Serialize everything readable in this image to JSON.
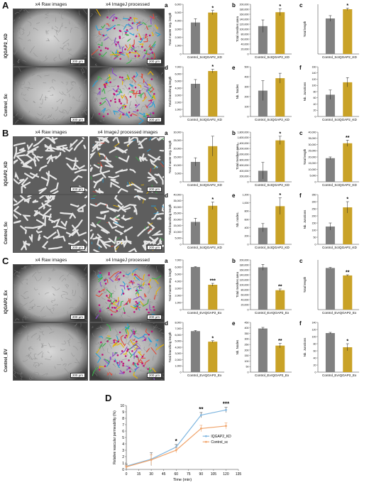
{
  "panels": [
    {
      "letter": "A",
      "image_titles": [
        "x4 Raw images",
        "x4 ImageJ processed"
      ],
      "row_labels": [
        "IQGAP2_KD",
        "Control_Sc"
      ],
      "scale_bar": "200 µm",
      "chart_data": [
        {
          "type": "bar",
          "letter": "a",
          "categories": [
            "Control_Sc",
            "IQGAP2_KD"
          ],
          "values": [
            3800,
            5000
          ],
          "errors": [
            450,
            250
          ],
          "ylabel": "Total master seg. length",
          "ylim": [
            0,
            6000
          ],
          "yticks": [
            "0",
            "1,000",
            "2,000",
            "3,000",
            "4,000",
            "5,000",
            "6,000"
          ],
          "significance": [
            "",
            "*"
          ]
        },
        {
          "type": "bar",
          "letter": "b",
          "categories": [
            "Control_Sc",
            "IQGAP2_KD"
          ],
          "values": [
            112000,
            168000
          ],
          "errors": [
            25000,
            14000
          ],
          "ylabel": "Total meshes area",
          "ylim": [
            0,
            200000
          ],
          "yticks": [
            "0",
            "20,000",
            "40,000",
            "60,000",
            "80,000",
            "100,000",
            "120,000",
            "140,000",
            "160,000",
            "180,000",
            "200,000"
          ],
          "significance": [
            "",
            "*"
          ]
        },
        {
          "type": "bar",
          "letter": "c",
          "categories": [
            "Control_Sc",
            "IQGAP2_KD"
          ],
          "values": [
            5000,
            6300
          ],
          "errors": [
            400,
            150
          ],
          "ylabel": "Total length",
          "ylim": [
            0,
            7000
          ],
          "yticks": [],
          "significance": [
            "",
            "*"
          ]
        },
        {
          "type": "bar",
          "letter": "d",
          "categories": [
            "Control_Sc",
            "IQGAP2_KD"
          ],
          "values": [
            4600,
            6400
          ],
          "errors": [
            600,
            250
          ],
          "ylabel": "Total branching length",
          "ylim": [
            0,
            7000
          ],
          "yticks": [
            "0",
            "1,000",
            "2,000",
            "3,000",
            "4,000",
            "5,000",
            "6,000",
            "7,000"
          ],
          "significance": [
            "",
            "*"
          ]
        },
        {
          "type": "bar",
          "letter": "e",
          "categories": [
            "Control_Sc",
            "IQGAP2_KD"
          ],
          "values": [
            260,
            385
          ],
          "errors": [
            100,
            50
          ],
          "ylabel": "Nb. Nodes",
          "ylim": [
            0,
            500
          ],
          "yticks": [
            "0",
            "100",
            "200",
            "300",
            "400",
            "500"
          ],
          "significance": [
            "",
            ""
          ]
        },
        {
          "type": "bar",
          "letter": "f",
          "categories": [
            "Control_Sc",
            "IQGAP2_KD"
          ],
          "values": [
            70,
            110
          ],
          "errors": [
            15,
            15
          ],
          "ylabel": "Nb. Junctions",
          "ylim": [
            0,
            160
          ],
          "yticks": [
            "0",
            "20",
            "40",
            "60",
            "80",
            "100",
            "120",
            "140",
            "160"
          ],
          "significance": [
            "",
            ""
          ]
        }
      ]
    },
    {
      "letter": "B",
      "image_titles": [
        "x4 Raw images",
        "x4 ImageJ processed images"
      ],
      "row_labels": [
        "IQGAP2_KD",
        "Control_Sc"
      ],
      "scale_bar": "200 µm",
      "chart_data": [
        {
          "type": "bar",
          "letter": "a",
          "categories": [
            "Control_Sc",
            "IQGAP2_KD"
          ],
          "values": [
            12000,
            21500
          ],
          "errors": [
            2500,
            6000
          ],
          "ylabel": "Total master seg. length",
          "ylim": [
            0,
            30000
          ],
          "yticks": [
            "0",
            "5,000",
            "10,000",
            "15,000",
            "20,000",
            "25,000",
            "30,000"
          ],
          "significance": [
            "",
            ""
          ]
        },
        {
          "type": "bar",
          "letter": "b",
          "categories": [
            "Control_Sc",
            "IQGAP2_KD"
          ],
          "values": [
            400000,
            1500000
          ],
          "errors": [
            300000,
            150000
          ],
          "ylabel": "Total meshes area",
          "ylim": [
            0,
            1800000
          ],
          "yticks": [
            "0",
            "200,000",
            "400,000",
            "600,000",
            "800,000",
            "1,000,000",
            "1,200,000",
            "1,400,000",
            "1,600,000",
            "1,800,000"
          ],
          "significance": [
            "",
            "*"
          ]
        },
        {
          "type": "bar",
          "letter": "c",
          "categories": [
            "Control_Sc",
            "IQGAP2_KD"
          ],
          "values": [
            19000,
            31000
          ],
          "errors": [
            1000,
            2500
          ],
          "ylabel": "Total length",
          "ylim": [
            0,
            40000
          ],
          "yticks": [
            "0",
            "5,000",
            "10,000",
            "15,000",
            "20,000",
            "25,000",
            "30,000",
            "35,000",
            "40,000"
          ],
          "significance": [
            "",
            "**"
          ]
        },
        {
          "type": "bar",
          "letter": "d",
          "categories": [
            "Control_Sc",
            "IQGAP2_KD"
          ],
          "values": [
            18000,
            31000
          ],
          "errors": [
            3000,
            3000
          ],
          "ylabel": "Total branching length",
          "ylim": [
            0,
            40000
          ],
          "yticks": [
            "0",
            "5,000",
            "10,000",
            "15,000",
            "20,000",
            "25,000",
            "30,000",
            "35,000",
            "40,000"
          ],
          "significance": [
            "",
            "*"
          ]
        },
        {
          "type": "bar",
          "letter": "e",
          "categories": [
            "Control_Sc",
            "IQGAP2_KD"
          ],
          "values": [
            400,
            920
          ],
          "errors": [
            100,
            200
          ],
          "ylabel": "Nb. nodes.",
          "ylim": [
            0,
            1200
          ],
          "yticks": [
            "0",
            "200",
            "400",
            "600",
            "800",
            "1,000",
            "1,200"
          ],
          "significance": [
            "",
            "*"
          ]
        },
        {
          "type": "bar",
          "letter": "f",
          "categories": [
            "Control_Sc",
            "IQGAP2_KD"
          ],
          "values": [
            125,
            260
          ],
          "errors": [
            25,
            40
          ],
          "ylabel": "Nb. Junctions",
          "ylim": [
            0,
            350
          ],
          "yticks": [
            "0",
            "50",
            "100",
            "150",
            "200",
            "250",
            "300",
            "350"
          ],
          "significance": [
            "",
            "*"
          ]
        }
      ]
    },
    {
      "letter": "C",
      "image_titles": [
        "x4 Raw images",
        "x4 ImageJ processed"
      ],
      "row_labels": [
        "IQGAP2_Ex",
        "Control_EV"
      ],
      "scale_bar": "200 µm",
      "chart_data": [
        {
          "type": "bar",
          "letter": "a",
          "categories": [
            "Control_Ev",
            "IQGAP2_Ex"
          ],
          "values": [
            6000,
            3500
          ],
          "errors": [
            50,
            200
          ],
          "ylabel": "Total master seg. length",
          "ylim": [
            0,
            7000
          ],
          "yticks": [
            "0",
            "1,000",
            "2,000",
            "3,000",
            "4,000",
            "5,000",
            "6,000",
            "7,000"
          ],
          "significance": [
            "",
            "***"
          ]
        },
        {
          "type": "bar",
          "letter": "b",
          "categories": [
            "Control_Ev",
            "IQGAP2_Ex"
          ],
          "values": [
            170000,
            78000
          ],
          "errors": [
            12000,
            5000
          ],
          "ylabel": "Total meshes area",
          "ylim": [
            0,
            200000
          ],
          "yticks": [
            "0",
            "20,000",
            "40,000",
            "60,000",
            "80,000",
            "100,000",
            "120,000",
            "140,000",
            "160,000",
            "180,000",
            "200,000"
          ],
          "significance": [
            "",
            "**"
          ]
        },
        {
          "type": "bar",
          "letter": "c",
          "categories": [
            "Control_Ev",
            "IQGAP2_Ex"
          ],
          "values": [
            6700,
            5500
          ],
          "errors": [
            80,
            100
          ],
          "ylabel": "Total length",
          "ylim": [
            0,
            8000
          ],
          "yticks": [],
          "significance": [
            "",
            "**"
          ]
        },
        {
          "type": "bar",
          "letter": "d",
          "categories": [
            "Control_Ev",
            "IQGAP2_Ex"
          ],
          "values": [
            6600,
            4900
          ],
          "errors": [
            100,
            150
          ],
          "ylabel": "Total branching length",
          "ylim": [
            0,
            8000
          ],
          "yticks": [
            "0",
            "1,000",
            "2,000",
            "3,000",
            "4,000",
            "5,000",
            "6,000",
            "7,000",
            "8,000"
          ],
          "significance": [
            "",
            "*"
          ]
        },
        {
          "type": "bar",
          "letter": "e",
          "categories": [
            "Control_Ev",
            "IQGAP2_Ex"
          ],
          "values": [
            395,
            240
          ],
          "errors": [
            10,
            20
          ],
          "ylabel": "Nb. Nodes",
          "ylim": [
            0,
            450
          ],
          "yticks": [
            "0",
            "50",
            "100",
            "150",
            "200",
            "250",
            "300",
            "350",
            "400",
            "450"
          ],
          "significance": [
            "",
            "**"
          ]
        },
        {
          "type": "bar",
          "letter": "f",
          "categories": [
            "Control_Ev",
            "IQGAP2_Ex"
          ],
          "values": [
            110,
            70
          ],
          "errors": [
            2,
            10
          ],
          "ylabel": "Nb. Junctions",
          "ylim": [
            0,
            140
          ],
          "yticks": [
            "0",
            "20",
            "40",
            "60",
            "80",
            "100",
            "120",
            "140"
          ],
          "significance": [
            "",
            "*"
          ]
        }
      ]
    }
  ],
  "panel_d": {
    "letter": "D",
    "chart_data": {
      "type": "line",
      "xlabel": "Time (min)",
      "ylabel": "Relative vascular permeability (%)",
      "xlim": [
        0,
        135
      ],
      "ylim": [
        0,
        10
      ],
      "xticks": [
        0,
        15,
        30,
        45,
        60,
        75,
        90,
        105,
        120,
        135
      ],
      "yticks": [
        0,
        1,
        2,
        3,
        4,
        5,
        6,
        7,
        8,
        9,
        10
      ],
      "legend_position": "right",
      "series": [
        {
          "name": "IQGAP2_KD",
          "color": "#7fb6e0",
          "x": [
            0,
            30,
            60,
            90,
            120
          ],
          "y": [
            0.5,
            1.6,
            3.5,
            8.5,
            9.3
          ],
          "errors": [
            0.3,
            1.0,
            0.4,
            0.4,
            0.4
          ]
        },
        {
          "name": "Control_sc",
          "color": "#f0a36a",
          "x": [
            0,
            30,
            60,
            90,
            120
          ],
          "y": [
            0.4,
            1.5,
            3.0,
            6.4,
            6.8
          ],
          "errors": [
            0.2,
            0.8,
            0.4,
            0.5,
            0.5
          ]
        }
      ],
      "significance": [
        {
          "x": 60,
          "label": "*"
        },
        {
          "x": 90,
          "label": "**"
        },
        {
          "x": 120,
          "label": "***"
        }
      ]
    }
  },
  "colors": {
    "control_bar": "#808080",
    "treated_bar": "#c9a227"
  }
}
